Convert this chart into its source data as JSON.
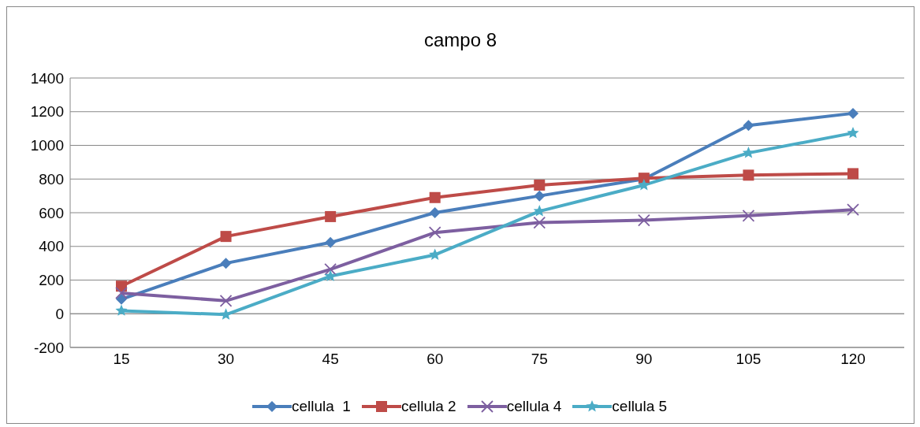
{
  "chart_data": {
    "type": "line",
    "title": "campo 8",
    "categories": [
      "15",
      "30",
      "45",
      "60",
      "75",
      "90",
      "105",
      "120"
    ],
    "series": [
      {
        "name": "cellula  1",
        "color": "#4a7ebb",
        "marker": "diamond",
        "values": [
          86,
          300,
          423,
          600,
          700,
          800,
          1118,
          1190
        ]
      },
      {
        "name": "cellula 2",
        "color": "#be4b48",
        "marker": "square",
        "values": [
          164,
          459,
          577,
          690,
          764,
          805,
          823,
          832
        ]
      },
      {
        "name": "cellula 4",
        "color": "#7d5fa0",
        "marker": "cross",
        "values": [
          123,
          77,
          264,
          482,
          541,
          555,
          582,
          618
        ]
      },
      {
        "name": "cellula 5",
        "color": "#4bacc6",
        "marker": "star",
        "values": [
          18,
          -5,
          223,
          350,
          609,
          764,
          955,
          1073
        ]
      }
    ],
    "ylim": [
      -200,
      1400
    ],
    "yticks": [
      -200,
      0,
      200,
      400,
      600,
      800,
      1000,
      1200,
      1400
    ],
    "grid": "y",
    "legend": "bottom"
  }
}
